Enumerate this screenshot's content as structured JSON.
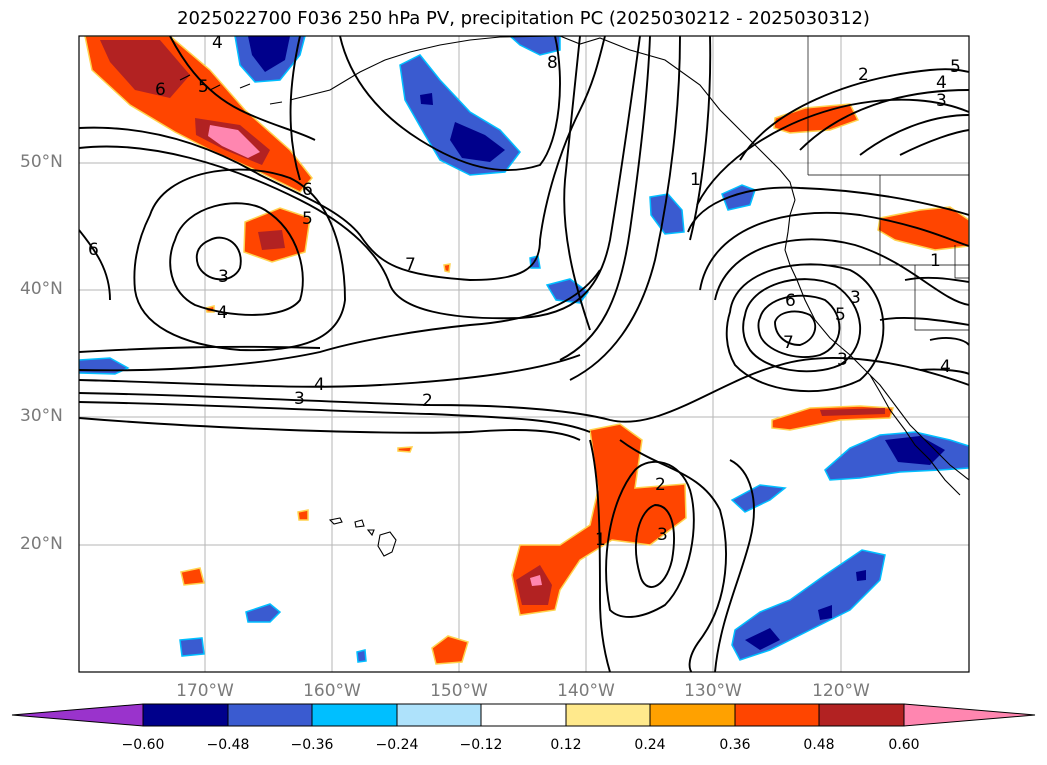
{
  "title": "2025022700 F036 250 hPa PV, precipitation PC (2025030212 - 2025030312)",
  "lat_labels": [
    "50°N",
    "40°N",
    "30°N",
    "20°N"
  ],
  "lon_labels": [
    "170°W",
    "160°W",
    "150°W",
    "140°W",
    "130°W",
    "120°W"
  ],
  "colorbar": {
    "ticks": [
      "−0.60",
      "−0.48",
      "−0.36",
      "−0.24",
      "−0.12",
      "0.12",
      "0.24",
      "0.36",
      "0.48",
      "0.60"
    ],
    "colors": [
      "#9a33cc",
      "#00008b",
      "#3a5bd0",
      "#00bfff",
      "#aee2fb",
      "#ffffff",
      "#ffe98c",
      "#ffa100",
      "#ff4500",
      "#b22222",
      "#ff86b0"
    ]
  },
  "contour_labels": [
    "4",
    "5",
    "6",
    "8",
    "2",
    "4",
    "5",
    "3",
    "6",
    "5",
    "6",
    "3",
    "4",
    "7",
    "1",
    "3",
    "6",
    "7",
    "5",
    "3",
    "1",
    "4",
    "4",
    "3",
    "2",
    "2",
    "1",
    "3"
  ]
}
